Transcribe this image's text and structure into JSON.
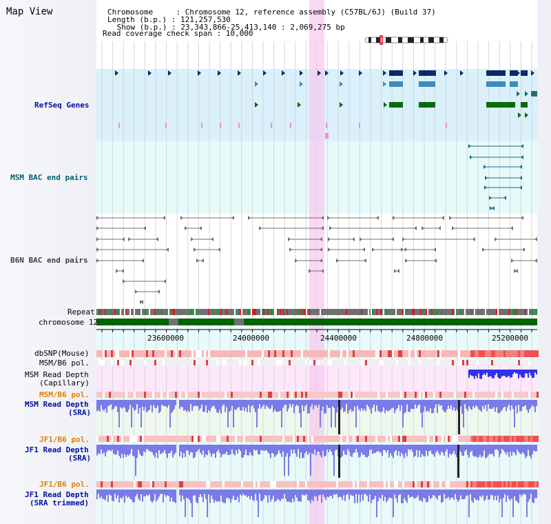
{
  "page": {
    "title": "Map View",
    "header": {
      "chromosome_line": "Chromosome     : Chromosome 12, reference assembly (C57BL/6J) (Build 37)",
      "length_line": "Length (b.p.) : 121,257,530",
      "show_line": " Show (b.p.) : 23,343,866-25,413,140 : 2,069,275 bp",
      "coverage_line": "Read coverage check span : 10,000"
    }
  },
  "tracks": {
    "refseq": "RefSeq Genes",
    "msm_bac": "MSM BAC end pairs",
    "b6n_bac": "B6N BAC end pairs",
    "repeat": "Repeat",
    "chromosome": "chromosome 12",
    "dbsnp": "dbSNP(Mouse)",
    "msm_b6_pol_1": "MSM/B6 pol.",
    "msm_depth_cap_1": "MSM Read Depth",
    "msm_depth_cap_2": "(Capillary)",
    "msm_b6_pol_2": "MSM/B6 pol.",
    "msm_depth_sra_1": "MSM Read Depth",
    "msm_depth_sra_2": "(SRA)",
    "jf1_b6_pol_1": "JF1/B6 pol.",
    "jf1_depth_sra_1": "JF1 Read Depth",
    "jf1_depth_sra_2": "(SRA)",
    "jf1_b6_pol_2": "JF1/B6 pol.",
    "jf1_depth_trim_1": "JF1 Read Depth",
    "jf1_depth_trim_2": "(SRA trimmed)"
  },
  "ruler": {
    "ticks": [
      "23600000",
      "24000000",
      "24400000",
      "24800000",
      "25200000"
    ]
  },
  "colors": {
    "refseq_bg": "#daf0fb",
    "msm_bac_bg": "#e6fafa",
    "highlight": "#f6c8ee",
    "chromosome": "#006400",
    "depth_blue": "#3030f0",
    "pol_red": "#e02020"
  }
}
